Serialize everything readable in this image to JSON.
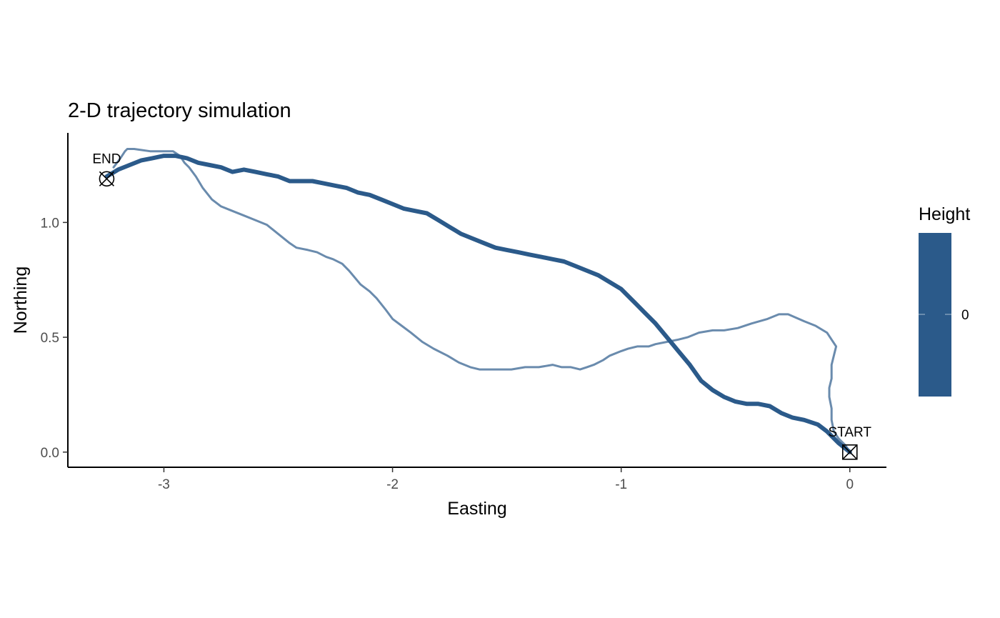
{
  "chart_data": {
    "type": "line",
    "title": "2-D trajectory simulation",
    "xlabel": "Easting",
    "ylabel": "Northing",
    "xlim": [
      -3.42,
      0.16
    ],
    "ylim": [
      -0.066,
      1.39
    ],
    "x_ticks": [
      -3,
      -2,
      -1,
      0
    ],
    "x_tick_labels": [
      "-3",
      "-2",
      "-1",
      "0"
    ],
    "y_ticks": [
      0.0,
      0.5,
      1.0
    ],
    "y_tick_labels": [
      "0.0",
      "0.5",
      "1.0"
    ],
    "grid": false,
    "legend": {
      "title": "Height",
      "placement": "right",
      "type": "colorbar",
      "color": "#2b5a8a",
      "ticks": [
        "0"
      ]
    },
    "series": [
      {
        "color": "#2b5a8a",
        "opacity": 0.7,
        "emphasis": "thin",
        "x": [
          0.0,
          -0.02,
          -0.05,
          -0.07,
          -0.08,
          -0.08,
          -0.09,
          -0.09,
          -0.08,
          -0.08,
          -0.07,
          -0.06,
          -0.08,
          -0.1,
          -0.15,
          -0.2,
          -0.27,
          -0.31,
          -0.36,
          -0.43,
          -0.49,
          -0.55,
          -0.6,
          -0.66,
          -0.71,
          -0.75,
          -0.8,
          -0.85,
          -0.88,
          -0.93,
          -0.97,
          -1.0,
          -1.05,
          -1.08,
          -1.12,
          -1.15,
          -1.18,
          -1.22,
          -1.26,
          -1.3,
          -1.36,
          -1.42,
          -1.48,
          -1.55,
          -1.62,
          -1.66,
          -1.71,
          -1.76,
          -1.82,
          -1.87,
          -1.92,
          -1.96,
          -2.0,
          -2.03,
          -2.07,
          -2.1,
          -2.14,
          -2.19,
          -2.22,
          -2.26,
          -2.29,
          -2.33,
          -2.37,
          -2.42,
          -2.45,
          -2.5,
          -2.55,
          -2.6,
          -2.65,
          -2.7,
          -2.75,
          -2.79,
          -2.83,
          -2.86,
          -2.89,
          -2.91,
          -2.93,
          -2.96,
          -3.01,
          -3.06,
          -3.13,
          -3.15,
          -3.16,
          -3.17,
          -3.19,
          -3.22
        ],
        "y": [
          0.0,
          0.03,
          0.06,
          0.09,
          0.14,
          0.19,
          0.24,
          0.28,
          0.32,
          0.38,
          0.42,
          0.46,
          0.49,
          0.52,
          0.55,
          0.57,
          0.6,
          0.6,
          0.58,
          0.56,
          0.54,
          0.53,
          0.53,
          0.52,
          0.5,
          0.49,
          0.48,
          0.47,
          0.46,
          0.46,
          0.45,
          0.44,
          0.42,
          0.4,
          0.38,
          0.37,
          0.36,
          0.37,
          0.37,
          0.38,
          0.37,
          0.37,
          0.36,
          0.36,
          0.36,
          0.37,
          0.39,
          0.42,
          0.45,
          0.48,
          0.52,
          0.55,
          0.58,
          0.62,
          0.67,
          0.7,
          0.73,
          0.79,
          0.82,
          0.84,
          0.85,
          0.87,
          0.88,
          0.89,
          0.91,
          0.95,
          0.99,
          1.01,
          1.03,
          1.05,
          1.07,
          1.1,
          1.15,
          1.2,
          1.24,
          1.26,
          1.29,
          1.31,
          1.31,
          1.31,
          1.32,
          1.32,
          1.32,
          1.31,
          1.28,
          1.24
        ]
      },
      {
        "color": "#2b5a8a",
        "opacity": 1,
        "emphasis": "thick",
        "x": [
          0.0,
          -0.05,
          -0.1,
          -0.14,
          -0.2,
          -0.25,
          -0.3,
          -0.35,
          -0.4,
          -0.45,
          -0.5,
          -0.55,
          -0.6,
          -0.65,
          -0.7,
          -0.75,
          -0.8,
          -0.85,
          -0.9,
          -0.95,
          -1.0,
          -1.05,
          -1.1,
          -1.15,
          -1.2,
          -1.25,
          -1.3,
          -1.35,
          -1.4,
          -1.45,
          -1.5,
          -1.55,
          -1.6,
          -1.65,
          -1.7,
          -1.75,
          -1.8,
          -1.85,
          -1.9,
          -1.95,
          -2.0,
          -2.05,
          -2.1,
          -2.15,
          -2.2,
          -2.25,
          -2.3,
          -2.35,
          -2.4,
          -2.45,
          -2.5,
          -2.55,
          -2.6,
          -2.65,
          -2.7,
          -2.75,
          -2.8,
          -2.85,
          -2.9,
          -2.95,
          -3.0,
          -3.05,
          -3.1,
          -3.15,
          -3.2,
          -3.25
        ],
        "y": [
          0.0,
          0.04,
          0.09,
          0.12,
          0.14,
          0.15,
          0.17,
          0.2,
          0.21,
          0.21,
          0.22,
          0.24,
          0.27,
          0.31,
          0.38,
          0.44,
          0.5,
          0.56,
          0.61,
          0.66,
          0.71,
          0.74,
          0.77,
          0.79,
          0.81,
          0.83,
          0.84,
          0.85,
          0.86,
          0.87,
          0.88,
          0.89,
          0.91,
          0.93,
          0.95,
          0.98,
          1.01,
          1.04,
          1.05,
          1.06,
          1.08,
          1.1,
          1.12,
          1.13,
          1.15,
          1.16,
          1.17,
          1.18,
          1.18,
          1.18,
          1.2,
          1.21,
          1.22,
          1.23,
          1.22,
          1.24,
          1.25,
          1.26,
          1.28,
          1.29,
          1.29,
          1.28,
          1.27,
          1.25,
          1.23,
          1.2
        ]
      }
    ],
    "annotations": [
      {
        "label": "END",
        "x": -3.25,
        "y": 1.19,
        "marker": "circle-x"
      },
      {
        "label": "START",
        "x": 0.0,
        "y": 0.0,
        "marker": "square-x"
      }
    ]
  }
}
